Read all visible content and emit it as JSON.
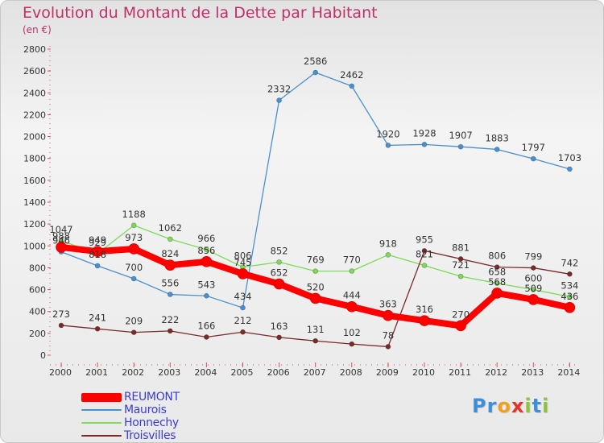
{
  "header": {
    "title": "Evolution du Montant de la Dette par Habitant",
    "unit": "(en €)"
  },
  "logo": {
    "letters": [
      {
        "ch": "P",
        "color": "#3f8ed8"
      },
      {
        "ch": "r",
        "color": "#3f8ed8"
      },
      {
        "ch": "o",
        "color": "#f0a020"
      },
      {
        "ch": "x",
        "color": "#e2342a"
      },
      {
        "ch": "i",
        "color": "#8cc43c"
      },
      {
        "ch": "t",
        "color": "#3f8ed8"
      },
      {
        "ch": "i",
        "color": "#8cc43c"
      }
    ]
  },
  "chart_data": {
    "type": "line",
    "title": "Evolution du Montant de la Dette par Habitant",
    "ylabel": "(en €)",
    "xlabel": "",
    "x": [
      "2000",
      "2001",
      "2002",
      "2003",
      "2004",
      "2005",
      "2006",
      "2007",
      "2008",
      "2009",
      "2010",
      "2011",
      "2012",
      "2013",
      "2014"
    ],
    "ylim": [
      0,
      2800
    ],
    "yticks": [
      "0",
      "200",
      "400",
      "600",
      "800",
      "1000",
      "1200",
      "1400",
      "1600",
      "1800",
      "2000",
      "2200",
      "2400",
      "2600",
      "2800"
    ],
    "grid": false,
    "legend_position": "bottom-left",
    "series": [
      {
        "name": "REUMONT",
        "color": "#ff0000",
        "emphasis": true,
        "values": [
          988,
          949,
          973,
          824,
          856,
          745,
          652,
          520,
          444,
          363,
          316,
          270,
          568,
          509,
          436
        ],
        "labels": [
          "988",
          "949",
          "973",
          "824",
          "856",
          "745",
          "652",
          "520",
          "444",
          "363",
          "316",
          "270",
          "568",
          "509",
          "436"
        ]
      },
      {
        "name": "Maurois",
        "color": "#4a90d0",
        "emphasis": false,
        "values": [
          946,
          818,
          700,
          556,
          543,
          434,
          2332,
          2586,
          2462,
          1920,
          1928,
          1907,
          1883,
          1797,
          1703
        ],
        "labels": [
          "946",
          "818",
          "700",
          "556",
          "543",
          "434",
          "2332",
          "2586",
          "2462",
          "1920",
          "1928",
          "1907",
          "1883",
          "1797",
          "1703"
        ]
      },
      {
        "name": "Honnechy",
        "color": "#7ed957",
        "emphasis": false,
        "values": [
          1047,
          929,
          1188,
          1062,
          966,
          806,
          852,
          769,
          770,
          918,
          821,
          721,
          658,
          600,
          534
        ],
        "labels": [
          "1047",
          "929",
          "1188",
          "1062",
          "966",
          "806",
          "852",
          "769",
          "770",
          "918",
          "821",
          "721",
          "658",
          "600",
          "534"
        ]
      },
      {
        "name": "Troisvilles",
        "color": "#7a2a2a",
        "emphasis": false,
        "values": [
          273,
          241,
          209,
          222,
          166,
          212,
          163,
          131,
          102,
          78,
          955,
          881,
          806,
          799,
          742
        ],
        "labels": [
          "273",
          "241",
          "209",
          "222",
          "166",
          "212",
          "163",
          "131",
          "102",
          "78",
          "955",
          "881",
          "806",
          "799",
          "742"
        ]
      }
    ]
  }
}
